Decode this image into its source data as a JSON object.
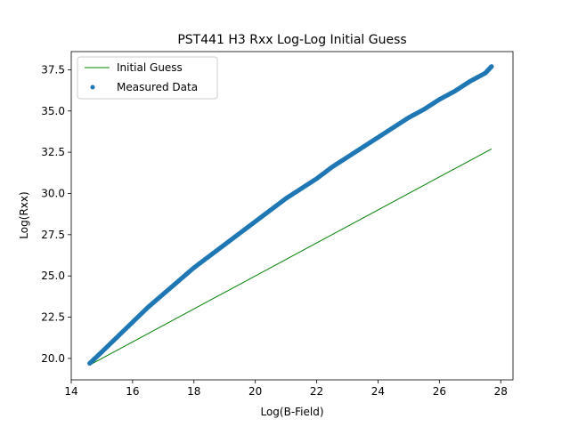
{
  "chart_data": {
    "type": "scatter",
    "title": "PST441 H3 Rxx Log-Log Initial Guess",
    "xlabel": "Log(B-Field)",
    "ylabel": "Log(Rxx)",
    "xlim": [
      14.0,
      28.4
    ],
    "ylim": [
      18.7,
      38.6
    ],
    "xticks": [
      14,
      16,
      18,
      20,
      22,
      24,
      26,
      28
    ],
    "yticks": [
      20.0,
      22.5,
      25.0,
      27.5,
      30.0,
      32.5,
      35.0,
      37.5
    ],
    "xtick_labels": [
      "14",
      "16",
      "18",
      "20",
      "22",
      "24",
      "26",
      "28"
    ],
    "ytick_labels": [
      "20.0",
      "22.5",
      "25.0",
      "27.5",
      "30.0",
      "32.5",
      "35.0",
      "37.5"
    ],
    "grid": false,
    "legend_position": "top-left",
    "series": [
      {
        "name": "Initial Guess",
        "kind": "line",
        "color": "#008000",
        "x": [
          14.6,
          27.7
        ],
        "y": [
          19.6,
          32.7
        ]
      },
      {
        "name": "Measured Data",
        "kind": "scatter",
        "color": "#1f77b4",
        "x": [
          14.6,
          15.0,
          15.5,
          16.0,
          16.5,
          17.0,
          17.5,
          18.0,
          18.5,
          19.0,
          19.5,
          20.0,
          20.5,
          21.0,
          21.5,
          22.0,
          22.5,
          23.0,
          23.5,
          24.0,
          24.5,
          25.0,
          25.5,
          26.0,
          26.5,
          27.0,
          27.5,
          27.7
        ],
        "y": [
          19.7,
          20.4,
          21.3,
          22.2,
          23.1,
          23.9,
          24.7,
          25.5,
          26.2,
          26.9,
          27.6,
          28.3,
          29.0,
          29.7,
          30.3,
          30.9,
          31.6,
          32.2,
          32.8,
          33.4,
          34.0,
          34.6,
          35.1,
          35.7,
          36.2,
          36.8,
          37.3,
          37.7
        ]
      }
    ]
  }
}
